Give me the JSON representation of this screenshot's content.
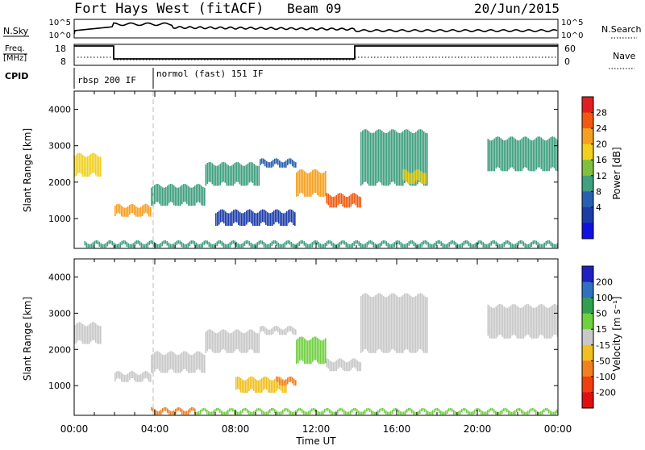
{
  "header": {
    "station": "Fort Hays West (fitACF)",
    "beam": "Beam 09",
    "date": "20/Jun/2015"
  },
  "strip_panels": {
    "nsky_label": "N.Sky",
    "nsky_ticks": [
      "10^5",
      "10^0"
    ],
    "nsearch_label": "N.Search",
    "nsearch_ticks": [
      "10^5",
      "10^0"
    ],
    "freq_label_1": "Freq.",
    "freq_label_2": "[MHz]",
    "freq_ticks": [
      "18",
      "8"
    ],
    "nave_label": "Nave",
    "nave_ticks": [
      "60",
      "0"
    ],
    "cpid_label": "CPID",
    "cpid_segments": [
      "rbsp 200 IF",
      "normol (fast) 151 IF"
    ]
  },
  "power_scale": {
    "title": "Power [dB]",
    "ticks": [
      "28",
      "24",
      "20",
      "16",
      "12",
      "8",
      "4"
    ],
    "colors": [
      "#e02020",
      "#f05a10",
      "#f5a020",
      "#f0d020",
      "#80c040",
      "#40a080",
      "#2860b0",
      "#1c3ca8",
      "#1010e0"
    ]
  },
  "velocity_scale": {
    "title": "Velocity [m s⁻¹]",
    "ticks": [
      "200",
      "100",
      "50",
      "15",
      "-15",
      "-50",
      "-100",
      "-200"
    ],
    "colors": [
      "#2020c0",
      "#3070c0",
      "#30a050",
      "#70d040",
      "#c8c8c8",
      "#f0c020",
      "#f08020",
      "#f04010",
      "#e01010"
    ]
  },
  "x_axis": {
    "label": "Time UT",
    "ticks": [
      "00:00",
      "04:00",
      "08:00",
      "12:00",
      "16:00",
      "20:00",
      "00:00"
    ]
  },
  "chart_data": [
    {
      "type": "heatmap",
      "name": "power",
      "ylabel": "Slant Range [km]",
      "xlabel": "",
      "xlim": [
        0,
        24
      ],
      "ylim": [
        180,
        4500
      ],
      "yticks": [
        "4000",
        "3000",
        "2000",
        "1000"
      ],
      "regions": [
        {
          "x": [
            0.0,
            1.3
          ],
          "y": [
            2150,
            2750
          ],
          "value": 16
        },
        {
          "x": [
            2.0,
            3.8
          ],
          "y": [
            1050,
            1350
          ],
          "value": 20
        },
        {
          "x": [
            3.8,
            6.5
          ],
          "y": [
            1350,
            1900
          ],
          "value": 10
        },
        {
          "x": [
            6.5,
            9.2
          ],
          "y": [
            1900,
            2500
          ],
          "value": 12
        },
        {
          "x": [
            9.2,
            11.0
          ],
          "y": [
            2400,
            2600
          ],
          "value": 8
        },
        {
          "x": [
            11.0,
            12.5
          ],
          "y": [
            1600,
            2300
          ],
          "value": 20
        },
        {
          "x": [
            12.5,
            14.2
          ],
          "y": [
            1300,
            1650
          ],
          "value": 22
        },
        {
          "x": [
            14.2,
            17.5
          ],
          "y": [
            1900,
            3400
          ],
          "value": 10
        },
        {
          "x": [
            16.3,
            17.5
          ],
          "y": [
            1950,
            2300
          ],
          "value": 18
        },
        {
          "x": [
            20.5,
            24.0
          ],
          "y": [
            2300,
            3200
          ],
          "value": 12
        },
        {
          "x": [
            7.0,
            11.0
          ],
          "y": [
            800,
            1200
          ],
          "value": 6
        },
        {
          "x": [
            0.5,
            24.0
          ],
          "y": [
            200,
            350
          ],
          "value": 10
        }
      ]
    },
    {
      "type": "heatmap",
      "name": "velocity",
      "ylabel": "Slant Range [km]",
      "xlabel": "Time UT",
      "xlim": [
        0,
        24
      ],
      "ylim": [
        180,
        4500
      ],
      "yticks": [
        "4000",
        "3000",
        "2000",
        "1000"
      ],
      "regions": [
        {
          "x": [
            0.0,
            1.3
          ],
          "y": [
            2150,
            2700
          ],
          "value": 0
        },
        {
          "x": [
            2.0,
            3.8
          ],
          "y": [
            1100,
            1350
          ],
          "value": 0
        },
        {
          "x": [
            3.8,
            6.5
          ],
          "y": [
            1350,
            1900
          ],
          "value": 0
        },
        {
          "x": [
            6.5,
            9.2
          ],
          "y": [
            1900,
            2500
          ],
          "value": 0
        },
        {
          "x": [
            9.2,
            11.0
          ],
          "y": [
            2400,
            2600
          ],
          "value": 0
        },
        {
          "x": [
            11.0,
            12.5
          ],
          "y": [
            1600,
            2300
          ],
          "value": 30
        },
        {
          "x": [
            12.5,
            14.2
          ],
          "y": [
            1400,
            1700
          ],
          "value": 0
        },
        {
          "x": [
            14.2,
            17.5
          ],
          "y": [
            1900,
            3500
          ],
          "value": 0
        },
        {
          "x": [
            20.5,
            24.0
          ],
          "y": [
            2300,
            3200
          ],
          "value": 0
        },
        {
          "x": [
            8.0,
            10.5
          ],
          "y": [
            800,
            1200
          ],
          "value": -40
        },
        {
          "x": [
            10.0,
            11.0
          ],
          "y": [
            1000,
            1200
          ],
          "value": -70
        },
        {
          "x": [
            3.8,
            6.0
          ],
          "y": [
            200,
            350
          ],
          "value": -60
        },
        {
          "x": [
            6.0,
            24.0
          ],
          "y": [
            200,
            330
          ],
          "value": 30
        }
      ]
    }
  ]
}
